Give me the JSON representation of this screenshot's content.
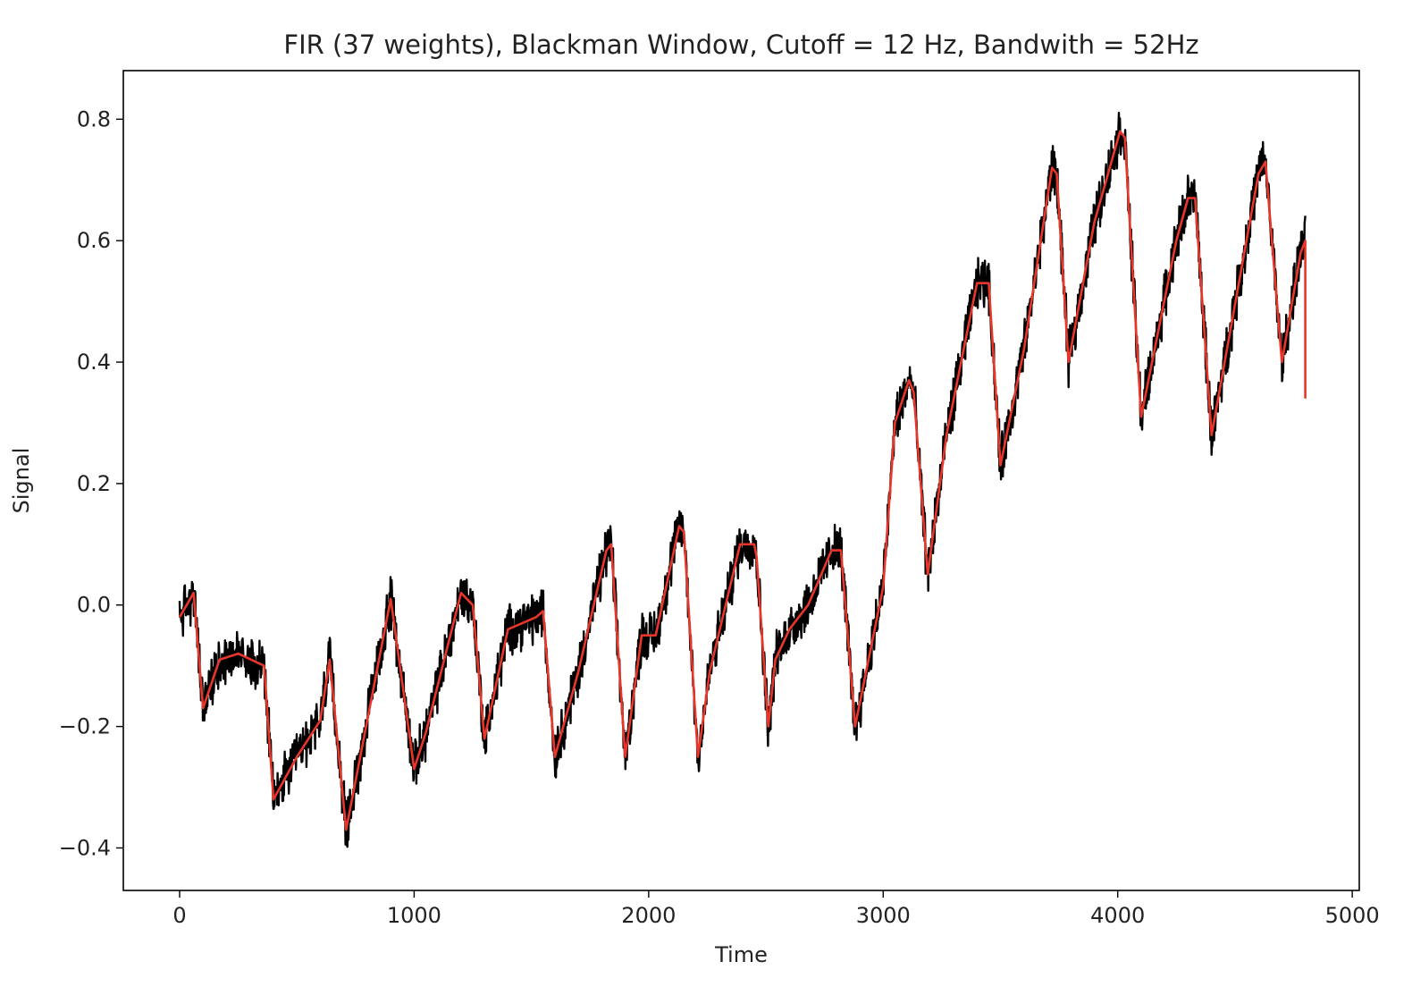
{
  "chart_data": {
    "type": "line",
    "title": "FIR (37 weights), Blackman Window, Cutoff = 12 Hz, Bandwith = 52Hz",
    "xlabel": "Time",
    "ylabel": "Signal",
    "xlim": [
      -240,
      5030
    ],
    "ylim": [
      -0.47,
      0.88
    ],
    "x_ticks": [
      0,
      1000,
      2000,
      3000,
      4000,
      5000
    ],
    "x_tick_labels": [
      "0",
      "1000",
      "2000",
      "3000",
      "4000",
      "5000"
    ],
    "y_ticks": [
      -0.4,
      -0.2,
      0.0,
      0.2,
      0.4,
      0.6,
      0.8
    ],
    "y_tick_labels": [
      "−0.4",
      "−0.2",
      "0.0",
      "0.2",
      "0.4",
      "0.6",
      "0.8"
    ],
    "grid": false,
    "legend": "none",
    "series": [
      {
        "color": "#000000",
        "role": "raw noisy signal",
        "noise_amplitude": 0.03,
        "x": [
          0,
          60,
          100,
          170,
          250,
          360,
          400,
          500,
          600,
          640,
          710,
          900,
          1000,
          1050,
          1200,
          1250,
          1300,
          1400,
          1520,
          1550,
          1600,
          1700,
          1820,
          1840,
          1900,
          1970,
          2030,
          2130,
          2150,
          2210,
          2260,
          2390,
          2450,
          2460,
          2510,
          2540,
          2600,
          2680,
          2780,
          2820,
          2880,
          3000,
          3050,
          3110,
          3130,
          3190,
          3270,
          3400,
          3450,
          3500,
          3600,
          3720,
          3740,
          3790,
          3900,
          4010,
          4030,
          4100,
          4250,
          4300,
          4330,
          4400,
          4600,
          4630,
          4700,
          4780,
          4800
        ],
        "y": [
          -0.02,
          0.02,
          -0.17,
          -0.09,
          -0.08,
          -0.1,
          -0.32,
          -0.25,
          -0.19,
          -0.09,
          -0.37,
          0.01,
          -0.27,
          -0.21,
          0.02,
          0.0,
          -0.22,
          -0.04,
          -0.02,
          -0.01,
          -0.25,
          -0.11,
          0.09,
          0.1,
          -0.25,
          -0.05,
          -0.05,
          0.13,
          0.12,
          -0.25,
          -0.11,
          0.1,
          0.1,
          0.08,
          -0.2,
          -0.09,
          -0.04,
          0.0,
          0.09,
          0.09,
          -0.2,
          0.03,
          0.3,
          0.37,
          0.35,
          0.05,
          0.28,
          0.53,
          0.53,
          0.23,
          0.42,
          0.72,
          0.71,
          0.4,
          0.63,
          0.78,
          0.77,
          0.31,
          0.6,
          0.67,
          0.67,
          0.28,
          0.71,
          0.73,
          0.4,
          0.58,
          0.6
        ]
      },
      {
        "color": "#e8362a",
        "role": "FIR filtered signal",
        "x": [
          0,
          60,
          100,
          170,
          250,
          360,
          400,
          500,
          600,
          640,
          710,
          900,
          1000,
          1050,
          1200,
          1250,
          1300,
          1400,
          1520,
          1550,
          1600,
          1700,
          1820,
          1840,
          1900,
          1970,
          2030,
          2130,
          2150,
          2210,
          2260,
          2390,
          2450,
          2460,
          2510,
          2540,
          2600,
          2680,
          2780,
          2820,
          2880,
          3000,
          3050,
          3110,
          3130,
          3190,
          3270,
          3400,
          3450,
          3500,
          3600,
          3720,
          3740,
          3790,
          3900,
          4010,
          4030,
          4100,
          4250,
          4300,
          4330,
          4400,
          4600,
          4630,
          4700,
          4780,
          4800,
          4800
        ],
        "y": [
          -0.02,
          0.02,
          -0.17,
          -0.09,
          -0.08,
          -0.1,
          -0.32,
          -0.25,
          -0.19,
          -0.09,
          -0.37,
          0.01,
          -0.27,
          -0.21,
          0.02,
          0.0,
          -0.22,
          -0.04,
          -0.02,
          -0.01,
          -0.25,
          -0.11,
          0.09,
          0.1,
          -0.25,
          -0.05,
          -0.05,
          0.13,
          0.12,
          -0.25,
          -0.11,
          0.1,
          0.1,
          0.08,
          -0.2,
          -0.09,
          -0.04,
          0.0,
          0.09,
          0.09,
          -0.2,
          0.03,
          0.3,
          0.37,
          0.35,
          0.05,
          0.28,
          0.53,
          0.53,
          0.23,
          0.42,
          0.72,
          0.71,
          0.4,
          0.63,
          0.78,
          0.77,
          0.31,
          0.6,
          0.67,
          0.67,
          0.28,
          0.71,
          0.73,
          0.4,
          0.58,
          0.6,
          0.34
        ]
      }
    ]
  }
}
